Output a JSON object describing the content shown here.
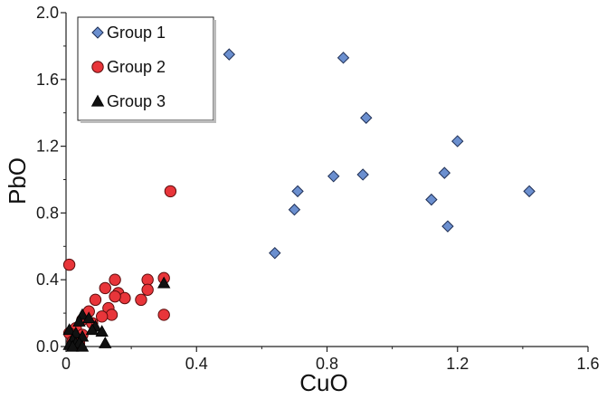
{
  "chart_data": {
    "type": "scatter",
    "title": "",
    "xlabel": "CuO",
    "ylabel": "PbO",
    "xlim": [
      0,
      1.6
    ],
    "ylim": [
      0,
      2.0
    ],
    "xticks": [
      "0",
      "0.4",
      "0.8",
      "1.2",
      "1.6"
    ],
    "yticks": [
      "0.0",
      "0.4",
      "0.8",
      "1.2",
      "1.6",
      "2.0"
    ],
    "grid": false,
    "legend": "top-left",
    "series": [
      {
        "name": "Group 1",
        "marker": "diamond",
        "color": "#6b8fcf",
        "points": [
          [
            0.5,
            1.75
          ],
          [
            0.85,
            1.73
          ],
          [
            0.92,
            1.37
          ],
          [
            1.2,
            1.23
          ],
          [
            0.82,
            1.02
          ],
          [
            0.91,
            1.03
          ],
          [
            1.16,
            1.04
          ],
          [
            0.71,
            0.93
          ],
          [
            1.12,
            0.88
          ],
          [
            1.42,
            0.93
          ],
          [
            0.7,
            0.82
          ],
          [
            1.17,
            0.72
          ],
          [
            0.64,
            0.56
          ]
        ]
      },
      {
        "name": "Group 2",
        "marker": "circle",
        "color": "#e8353a",
        "points": [
          [
            0.01,
            0.49
          ],
          [
            0.32,
            0.93
          ],
          [
            0.15,
            0.4
          ],
          [
            0.25,
            0.4
          ],
          [
            0.3,
            0.41
          ],
          [
            0.12,
            0.35
          ],
          [
            0.16,
            0.32
          ],
          [
            0.25,
            0.34
          ],
          [
            0.18,
            0.29
          ],
          [
            0.15,
            0.3
          ],
          [
            0.23,
            0.28
          ],
          [
            0.09,
            0.28
          ],
          [
            0.13,
            0.23
          ],
          [
            0.14,
            0.19
          ],
          [
            0.3,
            0.19
          ],
          [
            0.07,
            0.21
          ],
          [
            0.11,
            0.18
          ],
          [
            0.05,
            0.16
          ],
          [
            0.08,
            0.14
          ],
          [
            0.03,
            0.11
          ],
          [
            0.01,
            0.08
          ],
          [
            0.05,
            0.07
          ],
          [
            0.02,
            0.03
          ],
          [
            0.04,
            0.02
          ]
        ]
      },
      {
        "name": "Group 3",
        "marker": "triangle",
        "color": "#111111",
        "points": [
          [
            0.3,
            0.38
          ],
          [
            0.05,
            0.19
          ],
          [
            0.07,
            0.17
          ],
          [
            0.04,
            0.15
          ],
          [
            0.09,
            0.12
          ],
          [
            0.08,
            0.1
          ],
          [
            0.01,
            0.1
          ],
          [
            0.03,
            0.08
          ],
          [
            0.11,
            0.09
          ],
          [
            0.05,
            0.06
          ],
          [
            0.02,
            0.04
          ],
          [
            0.03,
            0.02
          ],
          [
            0.04,
            0.02
          ],
          [
            0.12,
            0.02
          ],
          [
            0.01,
            0.01
          ],
          [
            0.02,
            0.0
          ],
          [
            0.05,
            0.0
          ]
        ]
      }
    ]
  }
}
